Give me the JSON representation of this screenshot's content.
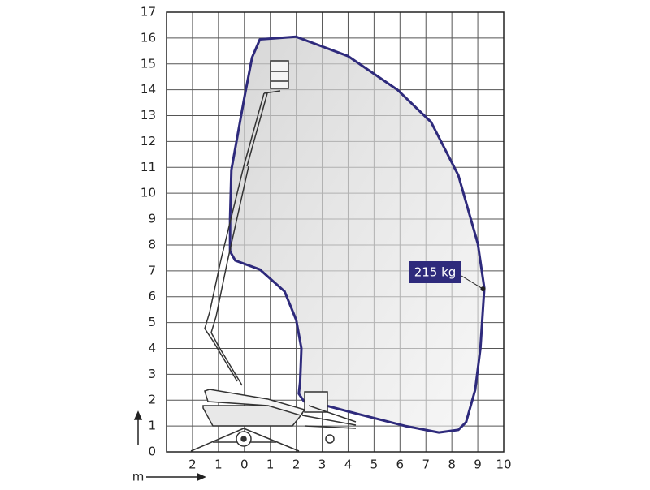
{
  "chart_data": {
    "type": "envelope",
    "axis_unit": "m",
    "xlim": [
      -3,
      10
    ],
    "ylim": [
      0,
      17
    ],
    "xticks": [
      {
        "value": -2,
        "label": "2"
      },
      {
        "value": -1,
        "label": "1"
      },
      0,
      1,
      2,
      3,
      4,
      5,
      6,
      7,
      8,
      9,
      10
    ],
    "yticks": [
      0,
      1,
      2,
      3,
      4,
      5,
      6,
      7,
      8,
      9,
      10,
      11,
      12,
      13,
      14,
      15,
      16,
      17
    ],
    "grid": true,
    "series": [
      {
        "color": "#2e2a7c",
        "x": [
          0.6,
          2.0,
          4.0,
          5.9,
          7.2,
          8.25,
          9.0,
          9.25,
          9.1,
          8.9,
          8.55,
          8.25,
          7.5,
          6.2,
          4.35,
          3.1,
          2.3,
          2.1,
          2.15,
          2.2,
          2.0,
          1.55,
          0.6,
          -0.35,
          -0.55,
          -0.55,
          -0.5,
          0,
          0.3
        ],
        "values": [
          15.95,
          16.05,
          15.3,
          14.0,
          12.75,
          10.7,
          8.05,
          6.33,
          4.0,
          2.4,
          1.15,
          0.85,
          0.75,
          1.0,
          1.47,
          1.8,
          1.95,
          2.25,
          2.7,
          4.0,
          5.1,
          6.2,
          7.05,
          7.4,
          7.75,
          9.0,
          10.9,
          13.7,
          15.25
        ]
      }
    ],
    "annotation": {
      "text": "215 kg",
      "x": 9.2,
      "y": 6.3
    }
  }
}
